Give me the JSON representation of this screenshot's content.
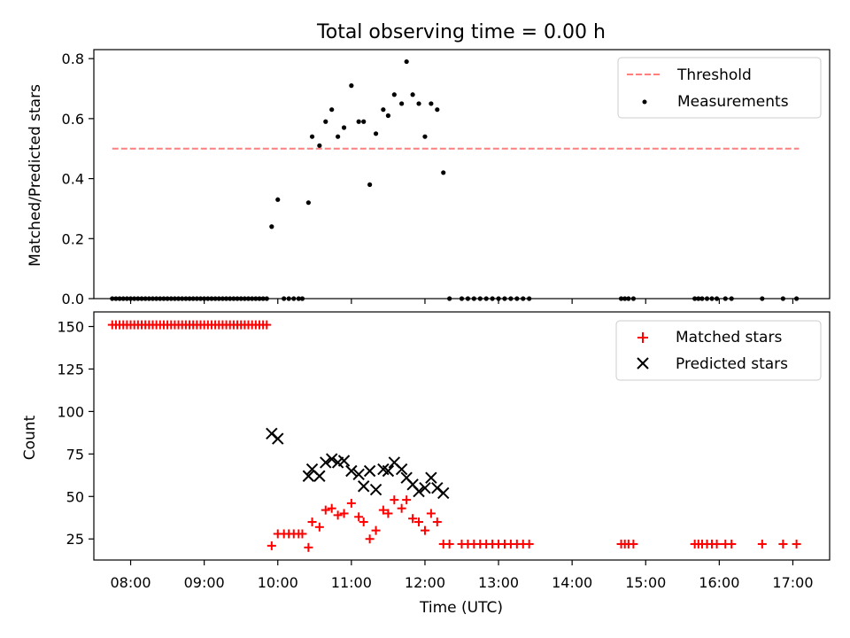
{
  "chart_data": [
    {
      "type": "scatter",
      "title": "Total observing time = 0.00 h",
      "ylabel": "Matched/Predicted stars",
      "xlabel": "",
      "xlim": [
        "07:30",
        "17:30"
      ],
      "ylim": [
        0,
        0.83
      ],
      "yticks": [
        "0.0",
        "0.2",
        "0.4",
        "0.6",
        "0.8"
      ],
      "xticks": [
        "08:00",
        "09:00",
        "10:00",
        "11:00",
        "12:00",
        "13:00",
        "14:00",
        "15:00",
        "16:00",
        "17:00"
      ],
      "grid": false,
      "legend": {
        "position": "top-right",
        "entries": [
          "Threshold",
          "Measurements"
        ]
      },
      "threshold": {
        "name": "Threshold",
        "value": 0.5,
        "x_range": [
          "07:45",
          "17:05"
        ],
        "color": "#ff7f7f",
        "style": "dashed"
      },
      "series": [
        {
          "name": "Measurements",
          "color": "#000000",
          "marker": "dot",
          "points": [
            [
              "07:45",
              0
            ],
            [
              "07:48",
              0
            ],
            [
              "07:51",
              0
            ],
            [
              "07:54",
              0
            ],
            [
              "07:57",
              0
            ],
            [
              "08:00",
              0
            ],
            [
              "08:03",
              0
            ],
            [
              "08:06",
              0
            ],
            [
              "08:09",
              0
            ],
            [
              "08:12",
              0
            ],
            [
              "08:15",
              0
            ],
            [
              "08:18",
              0
            ],
            [
              "08:21",
              0
            ],
            [
              "08:24",
              0
            ],
            [
              "08:27",
              0
            ],
            [
              "08:30",
              0
            ],
            [
              "08:33",
              0
            ],
            [
              "08:36",
              0
            ],
            [
              "08:39",
              0
            ],
            [
              "08:42",
              0
            ],
            [
              "08:45",
              0
            ],
            [
              "08:48",
              0
            ],
            [
              "08:51",
              0
            ],
            [
              "08:54",
              0
            ],
            [
              "08:57",
              0
            ],
            [
              "09:00",
              0
            ],
            [
              "09:03",
              0
            ],
            [
              "09:06",
              0
            ],
            [
              "09:09",
              0
            ],
            [
              "09:12",
              0
            ],
            [
              "09:15",
              0
            ],
            [
              "09:18",
              0
            ],
            [
              "09:21",
              0
            ],
            [
              "09:24",
              0
            ],
            [
              "09:27",
              0
            ],
            [
              "09:30",
              0
            ],
            [
              "09:33",
              0
            ],
            [
              "09:36",
              0
            ],
            [
              "09:39",
              0
            ],
            [
              "09:42",
              0
            ],
            [
              "09:45",
              0
            ],
            [
              "09:48",
              0
            ],
            [
              "09:51",
              0
            ],
            [
              "09:55",
              0.24
            ],
            [
              "10:00",
              0.33
            ],
            [
              "10:05",
              0
            ],
            [
              "10:09",
              0
            ],
            [
              "10:13",
              0
            ],
            [
              "10:17",
              0
            ],
            [
              "10:20",
              0
            ],
            [
              "10:25",
              0.32
            ],
            [
              "10:28",
              0.54
            ],
            [
              "10:34",
              0.51
            ],
            [
              "10:39",
              0.59
            ],
            [
              "10:44",
              0.63
            ],
            [
              "10:49",
              0.54
            ],
            [
              "10:54",
              0.57
            ],
            [
              "11:00",
              0.71
            ],
            [
              "11:06",
              0.59
            ],
            [
              "11:10",
              0.59
            ],
            [
              "11:15",
              0.38
            ],
            [
              "11:20",
              0.55
            ],
            [
              "11:26",
              0.63
            ],
            [
              "11:30",
              0.61
            ],
            [
              "11:35",
              0.68
            ],
            [
              "11:41",
              0.65
            ],
            [
              "11:45",
              0.79
            ],
            [
              "11:50",
              0.68
            ],
            [
              "11:55",
              0.65
            ],
            [
              "12:00",
              0.54
            ],
            [
              "12:05",
              0.65
            ],
            [
              "12:10",
              0.63
            ],
            [
              "12:15",
              0.42
            ],
            [
              "12:20",
              0
            ],
            [
              "12:30",
              0
            ],
            [
              "12:35",
              0
            ],
            [
              "12:40",
              0
            ],
            [
              "12:45",
              0
            ],
            [
              "12:50",
              0
            ],
            [
              "12:55",
              0
            ],
            [
              "13:00",
              0
            ],
            [
              "13:05",
              0
            ],
            [
              "13:10",
              0
            ],
            [
              "13:15",
              0
            ],
            [
              "13:20",
              0
            ],
            [
              "13:25",
              0
            ],
            [
              "14:40",
              0
            ],
            [
              "14:43",
              0
            ],
            [
              "14:46",
              0
            ],
            [
              "14:50",
              0
            ],
            [
              "15:40",
              0
            ],
            [
              "15:43",
              0
            ],
            [
              "15:46",
              0
            ],
            [
              "15:50",
              0
            ],
            [
              "15:54",
              0
            ],
            [
              "15:58",
              0
            ],
            [
              "16:05",
              0
            ],
            [
              "16:10",
              0
            ],
            [
              "16:35",
              0
            ],
            [
              "16:52",
              0
            ],
            [
              "17:03",
              0
            ]
          ]
        }
      ]
    },
    {
      "type": "scatter",
      "title": "",
      "xlabel": "Time (UTC)",
      "ylabel": "Count",
      "xlim": [
        "07:30",
        "17:30"
      ],
      "ylim": [
        12.6,
        158.6
      ],
      "yticks": [
        "25",
        "50",
        "75",
        "100",
        "125",
        "150"
      ],
      "xticks": [
        "08:00",
        "09:00",
        "10:00",
        "11:00",
        "12:00",
        "13:00",
        "14:00",
        "15:00",
        "16:00",
        "17:00"
      ],
      "grid": false,
      "legend": {
        "position": "top-right",
        "entries": [
          "Matched stars",
          "Predicted stars"
        ]
      },
      "series": [
        {
          "name": "Matched stars",
          "color": "#ff0000",
          "marker": "plus",
          "points": [
            [
              "07:45",
              151
            ],
            [
              "07:48",
              151
            ],
            [
              "07:51",
              151
            ],
            [
              "07:54",
              151
            ],
            [
              "07:57",
              151
            ],
            [
              "08:00",
              151
            ],
            [
              "08:03",
              151
            ],
            [
              "08:06",
              151
            ],
            [
              "08:09",
              151
            ],
            [
              "08:12",
              151
            ],
            [
              "08:15",
              151
            ],
            [
              "08:18",
              151
            ],
            [
              "08:21",
              151
            ],
            [
              "08:24",
              151
            ],
            [
              "08:27",
              151
            ],
            [
              "08:30",
              151
            ],
            [
              "08:33",
              151
            ],
            [
              "08:36",
              151
            ],
            [
              "08:39",
              151
            ],
            [
              "08:42",
              151
            ],
            [
              "08:45",
              151
            ],
            [
              "08:48",
              151
            ],
            [
              "08:51",
              151
            ],
            [
              "08:54",
              151
            ],
            [
              "08:57",
              151
            ],
            [
              "09:00",
              151
            ],
            [
              "09:03",
              151
            ],
            [
              "09:06",
              151
            ],
            [
              "09:09",
              151
            ],
            [
              "09:12",
              151
            ],
            [
              "09:15",
              151
            ],
            [
              "09:18",
              151
            ],
            [
              "09:21",
              151
            ],
            [
              "09:24",
              151
            ],
            [
              "09:27",
              151
            ],
            [
              "09:30",
              151
            ],
            [
              "09:33",
              151
            ],
            [
              "09:36",
              151
            ],
            [
              "09:39",
              151
            ],
            [
              "09:42",
              151
            ],
            [
              "09:45",
              151
            ],
            [
              "09:48",
              151
            ],
            [
              "09:51",
              151
            ],
            [
              "09:55",
              21
            ],
            [
              "10:00",
              28
            ],
            [
              "10:05",
              28
            ],
            [
              "10:09",
              28
            ],
            [
              "10:13",
              28
            ],
            [
              "10:17",
              28
            ],
            [
              "10:20",
              28
            ],
            [
              "10:25",
              20
            ],
            [
              "10:28",
              35
            ],
            [
              "10:34",
              32
            ],
            [
              "10:39",
              42
            ],
            [
              "10:44",
              43
            ],
            [
              "10:49",
              39
            ],
            [
              "10:54",
              40
            ],
            [
              "11:00",
              46
            ],
            [
              "11:06",
              38
            ],
            [
              "11:10",
              35
            ],
            [
              "11:15",
              25
            ],
            [
              "11:20",
              30
            ],
            [
              "11:26",
              42
            ],
            [
              "11:30",
              40
            ],
            [
              "11:35",
              48
            ],
            [
              "11:41",
              43
            ],
            [
              "11:45",
              48
            ],
            [
              "11:50",
              37
            ],
            [
              "11:55",
              35
            ],
            [
              "12:00",
              30
            ],
            [
              "12:05",
              40
            ],
            [
              "12:10",
              35
            ],
            [
              "12:15",
              22
            ],
            [
              "12:20",
              22
            ],
            [
              "12:30",
              22
            ],
            [
              "12:35",
              22
            ],
            [
              "12:40",
              22
            ],
            [
              "12:45",
              22
            ],
            [
              "12:50",
              22
            ],
            [
              "12:55",
              22
            ],
            [
              "13:00",
              22
            ],
            [
              "13:05",
              22
            ],
            [
              "13:10",
              22
            ],
            [
              "13:15",
              22
            ],
            [
              "13:20",
              22
            ],
            [
              "13:25",
              22
            ],
            [
              "14:40",
              22
            ],
            [
              "14:43",
              22
            ],
            [
              "14:46",
              22
            ],
            [
              "14:50",
              22
            ],
            [
              "15:40",
              22
            ],
            [
              "15:43",
              22
            ],
            [
              "15:46",
              22
            ],
            [
              "15:50",
              22
            ],
            [
              "15:54",
              22
            ],
            [
              "15:58",
              22
            ],
            [
              "16:05",
              22
            ],
            [
              "16:10",
              22
            ],
            [
              "16:35",
              22
            ],
            [
              "16:52",
              22
            ],
            [
              "17:03",
              22
            ]
          ]
        },
        {
          "name": "Predicted stars",
          "color": "#000000",
          "marker": "x",
          "points": [
            [
              "09:55",
              87
            ],
            [
              "10:00",
              84
            ],
            [
              "10:25",
              62
            ],
            [
              "10:28",
              66
            ],
            [
              "10:34",
              62
            ],
            [
              "10:39",
              70
            ],
            [
              "10:44",
              72
            ],
            [
              "10:49",
              70
            ],
            [
              "10:54",
              71
            ],
            [
              "11:00",
              65
            ],
            [
              "11:06",
              63
            ],
            [
              "11:10",
              56
            ],
            [
              "11:15",
              65
            ],
            [
              "11:20",
              54
            ],
            [
              "11:26",
              66
            ],
            [
              "11:30",
              65
            ],
            [
              "11:35",
              70
            ],
            [
              "11:41",
              66
            ],
            [
              "11:45",
              61
            ],
            [
              "11:50",
              57
            ],
            [
              "11:55",
              53
            ],
            [
              "12:00",
              55
            ],
            [
              "12:05",
              61
            ],
            [
              "12:10",
              55
            ],
            [
              "12:15",
              52
            ]
          ]
        }
      ]
    }
  ]
}
